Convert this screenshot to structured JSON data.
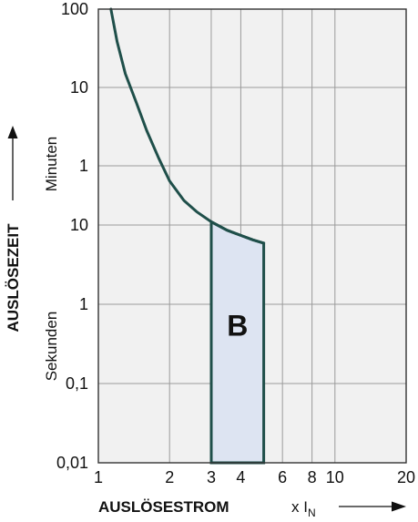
{
  "chart_data": {
    "type": "line",
    "title": "",
    "xlabel": "AUSLÖSESTROM",
    "xlabel_unit_prefix": "x I",
    "xlabel_unit_subscript": "N",
    "ylabel": "AUSLÖSEZEIT",
    "y_unit_upper": "Minuten",
    "y_unit_lower": "Sekunden",
    "x_scale": "log",
    "y_scale": "log",
    "xlim": [
      1,
      20
    ],
    "ylim_seconds": [
      0.01,
      6000
    ],
    "grid": true,
    "x_ticks": [
      {
        "value": 1,
        "label": "1"
      },
      {
        "value": 2,
        "label": "2"
      },
      {
        "value": 3,
        "label": "3"
      },
      {
        "value": 4,
        "label": "4"
      },
      {
        "value": 6,
        "label": "6"
      },
      {
        "value": 8,
        "label": "8"
      },
      {
        "value": 10,
        "label": "10"
      },
      {
        "value": 20,
        "label": "20"
      }
    ],
    "y_ticks": [
      {
        "seconds": 6000,
        "label": "100"
      },
      {
        "seconds": 600,
        "label": "10"
      },
      {
        "seconds": 60,
        "label": "1"
      },
      {
        "seconds": 10,
        "label": "10"
      },
      {
        "seconds": 1,
        "label": "1"
      },
      {
        "seconds": 0.1,
        "label": "0,1"
      },
      {
        "seconds": 0.01,
        "label": "0,01"
      }
    ],
    "series": [
      {
        "color": "#1f4f4a",
        "points": [
          {
            "x": 1.13,
            "y": 6000
          },
          {
            "x": 1.2,
            "y": 2300
          },
          {
            "x": 1.3,
            "y": 900
          },
          {
            "x": 1.45,
            "y": 380
          },
          {
            "x": 1.6,
            "y": 170
          },
          {
            "x": 1.8,
            "y": 75
          },
          {
            "x": 2.0,
            "y": 38
          },
          {
            "x": 2.3,
            "y": 21
          },
          {
            "x": 2.6,
            "y": 15
          },
          {
            "x": 3.0,
            "y": 11
          },
          {
            "x": 3.5,
            "y": 8.6
          },
          {
            "x": 4.0,
            "y": 7.4
          },
          {
            "x": 4.5,
            "y": 6.5
          },
          {
            "x": 5.0,
            "y": 5.9
          }
        ]
      }
    ],
    "region": {
      "label": "B",
      "x_range": [
        3,
        5
      ],
      "fill": "#dde4f2"
    }
  }
}
